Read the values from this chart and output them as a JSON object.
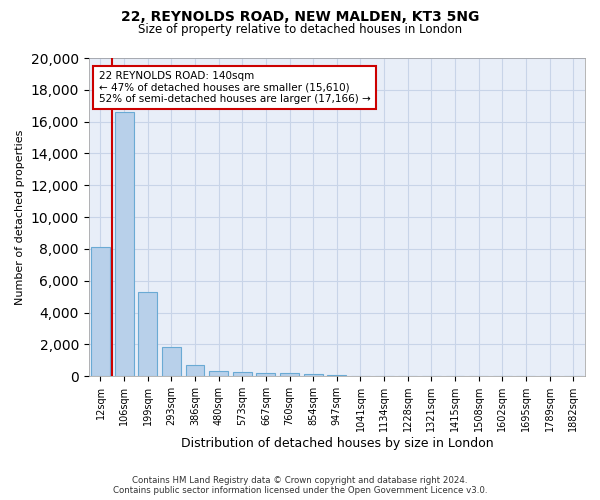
{
  "title_line1": "22, REYNOLDS ROAD, NEW MALDEN, KT3 5NG",
  "title_line2": "Size of property relative to detached houses in London",
  "xlabel": "Distribution of detached houses by size in London",
  "ylabel": "Number of detached properties",
  "categories": [
    "12sqm",
    "106sqm",
    "199sqm",
    "293sqm",
    "386sqm",
    "480sqm",
    "573sqm",
    "667sqm",
    "760sqm",
    "854sqm",
    "947sqm",
    "1041sqm",
    "1134sqm",
    "1228sqm",
    "1321sqm",
    "1415sqm",
    "1508sqm",
    "1602sqm",
    "1695sqm",
    "1789sqm",
    "1882sqm"
  ],
  "bar_heights": [
    8100,
    16600,
    5300,
    1850,
    680,
    350,
    270,
    220,
    180,
    140,
    80,
    0,
    0,
    0,
    0,
    0,
    0,
    0,
    0,
    0,
    0
  ],
  "bar_color": "#b8d0ea",
  "bar_edge_color": "#6aaad4",
  "red_line_x": 0.5,
  "highlight_color": "#cc0000",
  "annotation_text": "22 REYNOLDS ROAD: 140sqm\n← 47% of detached houses are smaller (15,610)\n52% of semi-detached houses are larger (17,166) →",
  "annotation_box_color": "#ffffff",
  "annotation_box_edge": "#cc0000",
  "ylim": [
    0,
    20000
  ],
  "yticks": [
    0,
    2000,
    4000,
    6000,
    8000,
    10000,
    12000,
    14000,
    16000,
    18000,
    20000
  ],
  "footer_line1": "Contains HM Land Registry data © Crown copyright and database right 2024.",
  "footer_line2": "Contains public sector information licensed under the Open Government Licence v3.0.",
  "grid_color": "#c8d4e8",
  "background_color": "#e8eef8"
}
